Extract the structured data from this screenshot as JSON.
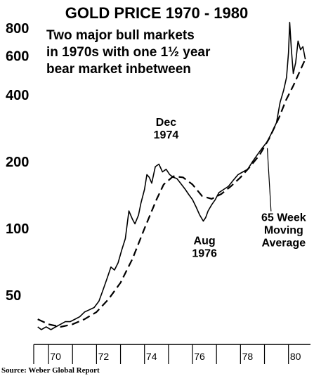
{
  "chart_data": {
    "type": "line",
    "title": "GOLD PRICE 1970 - 1980",
    "subtitle_lines": [
      "Two major bull markets",
      "in 1970s with one 1½ year",
      "bear market inbetween"
    ],
    "xlabel": "",
    "ylabel": "",
    "y_scale": "log",
    "xlim": [
      1969.5,
      1980.8
    ],
    "ylim": [
      30,
      900
    ],
    "y_ticks": [
      50,
      100,
      200,
      400,
      600,
      800
    ],
    "y_tick_labels": [
      "50",
      "100",
      "200",
      "400",
      "600",
      "800"
    ],
    "x_ticks": [
      1970,
      1972,
      1974,
      1976,
      1978,
      1980
    ],
    "x_tick_labels": [
      "70",
      "72",
      "74",
      "76",
      "78",
      "80"
    ],
    "grid": false,
    "series": [
      {
        "style": "solid",
        "x": [
          1969.55,
          1969.7,
          1969.9,
          1970.1,
          1970.3,
          1970.5,
          1970.7,
          1970.9,
          1971.1,
          1971.3,
          1971.5,
          1971.7,
          1971.9,
          1972.1,
          1972.25,
          1972.45,
          1972.6,
          1972.75,
          1972.9,
          1973.05,
          1973.2,
          1973.35,
          1973.5,
          1973.6,
          1973.75,
          1973.85,
          1974.0,
          1974.1,
          1974.2,
          1974.3,
          1974.45,
          1974.6,
          1974.75,
          1974.9,
          1975.05,
          1975.2,
          1975.35,
          1975.5,
          1975.7,
          1975.85,
          1976.0,
          1976.15,
          1976.3,
          1976.45,
          1976.55,
          1976.65,
          1976.8,
          1976.95,
          1977.1,
          1977.3,
          1977.5,
          1977.7,
          1977.9,
          1978.1,
          1978.3,
          1978.5,
          1978.7,
          1978.9,
          1979.1,
          1979.3,
          1979.5,
          1979.65,
          1979.8,
          1979.92,
          1980.0,
          1980.05,
          1980.12,
          1980.2,
          1980.3,
          1980.4,
          1980.5,
          1980.6,
          1980.7
        ],
        "y": [
          36,
          35,
          36,
          35,
          36,
          37,
          38,
          38,
          39,
          40,
          42,
          43,
          44,
          47,
          52,
          60,
          67,
          65,
          70,
          80,
          90,
          120,
          110,
          105,
          115,
          130,
          150,
          175,
          170,
          160,
          190,
          195,
          180,
          185,
          175,
          170,
          168,
          160,
          150,
          142,
          135,
          125,
          115,
          108,
          112,
          120,
          128,
          135,
          145,
          150,
          155,
          165,
          175,
          180,
          185,
          200,
          215,
          230,
          245,
          270,
          300,
          370,
          420,
          480,
          620,
          850,
          640,
          500,
          560,
          700,
          640,
          660,
          580
        ]
      },
      {
        "name": "65 Week Moving Average",
        "style": "dashed",
        "x": [
          1969.55,
          1970.0,
          1970.5,
          1971.0,
          1971.5,
          1972.0,
          1972.5,
          1973.0,
          1973.5,
          1974.0,
          1974.5,
          1974.8,
          1975.2,
          1975.6,
          1976.0,
          1976.4,
          1976.8,
          1977.2,
          1977.6,
          1978.0,
          1978.4,
          1978.8,
          1979.2,
          1979.6,
          1979.9,
          1980.2,
          1980.5,
          1980.7
        ],
        "y": [
          39,
          37,
          36,
          37,
          39,
          42,
          48,
          57,
          73,
          100,
          135,
          158,
          172,
          170,
          158,
          140,
          136,
          143,
          155,
          170,
          190,
          215,
          255,
          315,
          380,
          440,
          520,
          580
        ]
      }
    ],
    "annotations": [
      {
        "lines": [
          "Dec",
          "1974"
        ],
        "x": 1974.9,
        "y": 290
      },
      {
        "lines": [
          "Aug",
          "1976"
        ],
        "x": 1976.5,
        "y": 85
      },
      {
        "lines": [
          "65 Week",
          "Moving",
          "Average"
        ],
        "x": 1979.8,
        "y": 108
      }
    ],
    "source": "Source: Weber Global Report"
  }
}
